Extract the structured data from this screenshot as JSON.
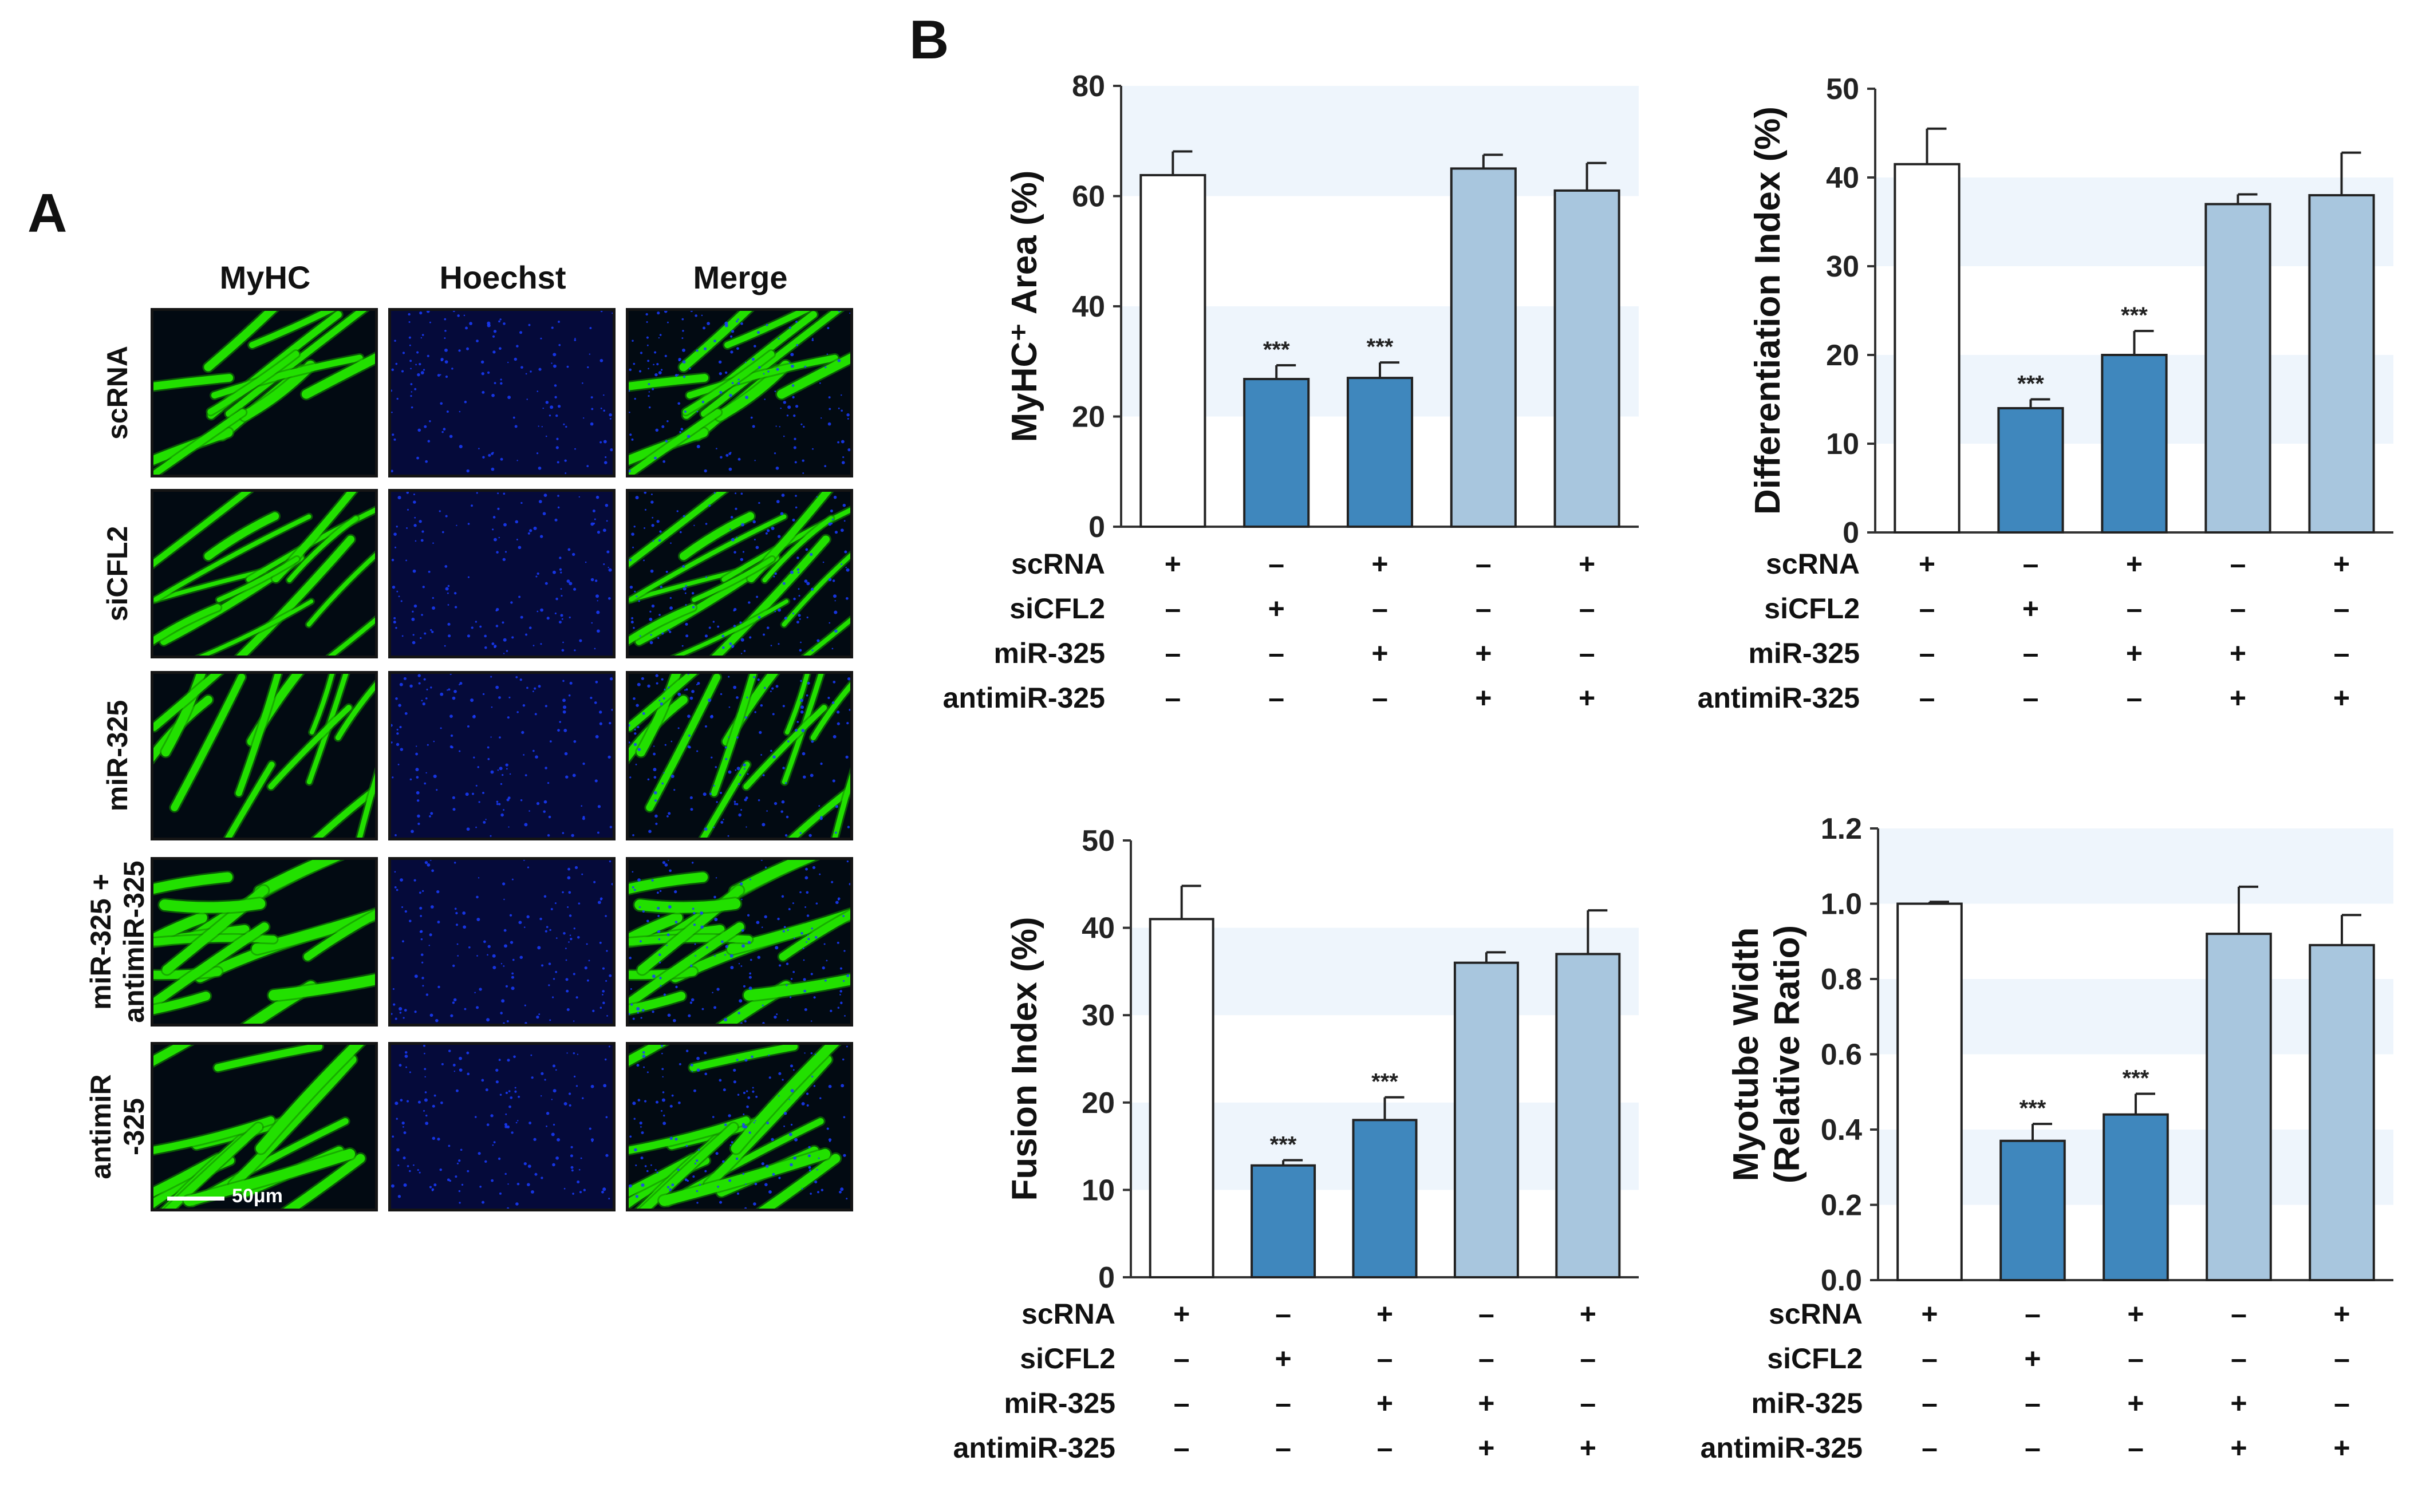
{
  "panel_a": {
    "label": "A",
    "columns": [
      "MyHC",
      "Hoechst",
      "Merge"
    ],
    "rows": [
      {
        "label_lines": [
          "scRNA"
        ]
      },
      {
        "label_lines": [
          "siCFL2"
        ]
      },
      {
        "label_lines": [
          "miR-325"
        ]
      },
      {
        "label_lines": [
          "miR-325 +",
          "antimiR-325"
        ]
      },
      {
        "label_lines": [
          "antimiR",
          "-325"
        ]
      }
    ],
    "scale_bar_label": "50μm",
    "colors": {
      "myhc": "#22e000",
      "hoechst": "#1a3cff",
      "background": "#020a12"
    }
  },
  "panel_b": {
    "label": "B"
  },
  "conditions": {
    "names": [
      "scRNA",
      "siCFL2",
      "miR-325",
      "antimiR-325"
    ],
    "signs": [
      [
        "+",
        "–",
        "+",
        "–",
        "+"
      ],
      [
        "–",
        "+",
        "–",
        "–",
        "–"
      ],
      [
        "–",
        "–",
        "+",
        "+",
        "–"
      ],
      [
        "–",
        "–",
        "–",
        "+",
        "+"
      ]
    ]
  },
  "colors": {
    "bar_fills": [
      "#ffffff",
      "#3f87bd",
      "#3f87bd",
      "#a8c6de",
      "#a8c6de"
    ],
    "band": "#eef5fc",
    "axis": "#333333"
  },
  "chart_data": [
    {
      "type": "bar",
      "ylabel": "MyHC⁺ Area (%)",
      "ylim": [
        0,
        80
      ],
      "yticks": [
        "0",
        "20",
        "40",
        "60",
        "80"
      ],
      "values": [
        63.8,
        26.8,
        27.0,
        65.0,
        61.0
      ],
      "errors": [
        4.3,
        2.5,
        2.8,
        2.5,
        5.0
      ],
      "significance": [
        "",
        "***",
        "***",
        "",
        ""
      ]
    },
    {
      "type": "bar",
      "ylabel": "Differentiation Index (%)",
      "ylim": [
        0,
        50
      ],
      "yticks": [
        "0",
        "10",
        "20",
        "30",
        "40",
        "50"
      ],
      "values": [
        41.5,
        14.0,
        20.0,
        37.0,
        38.0
      ],
      "errors": [
        4.0,
        1.0,
        2.7,
        1.1,
        4.8
      ],
      "significance": [
        "",
        "***",
        "***",
        "",
        ""
      ]
    },
    {
      "type": "bar",
      "ylabel": "Fusion Index (%)",
      "ylim": [
        0,
        50
      ],
      "yticks": [
        "0",
        "10",
        "20",
        "30",
        "40",
        "50"
      ],
      "values": [
        41.0,
        12.8,
        18.0,
        36.0,
        37.0
      ],
      "errors": [
        3.8,
        0.6,
        2.6,
        1.2,
        5.0
      ],
      "significance": [
        "",
        "***",
        "***",
        "",
        ""
      ]
    },
    {
      "type": "bar",
      "ylabel": "Myotube Width (Relative Ratio)",
      "ylabel_lines": [
        "Myotube Width",
        "(Relative Ratio)"
      ],
      "ylim": [
        0,
        1.2
      ],
      "yticks": [
        "0.0",
        "0.2",
        "0.4",
        "0.6",
        "0.8",
        "1.0",
        "1.2"
      ],
      "values": [
        1.0,
        0.37,
        0.44,
        0.92,
        0.89
      ],
      "errors": [
        0.005,
        0.045,
        0.055,
        0.125,
        0.08
      ],
      "significance": [
        "",
        "***",
        "***",
        "",
        ""
      ]
    }
  ]
}
